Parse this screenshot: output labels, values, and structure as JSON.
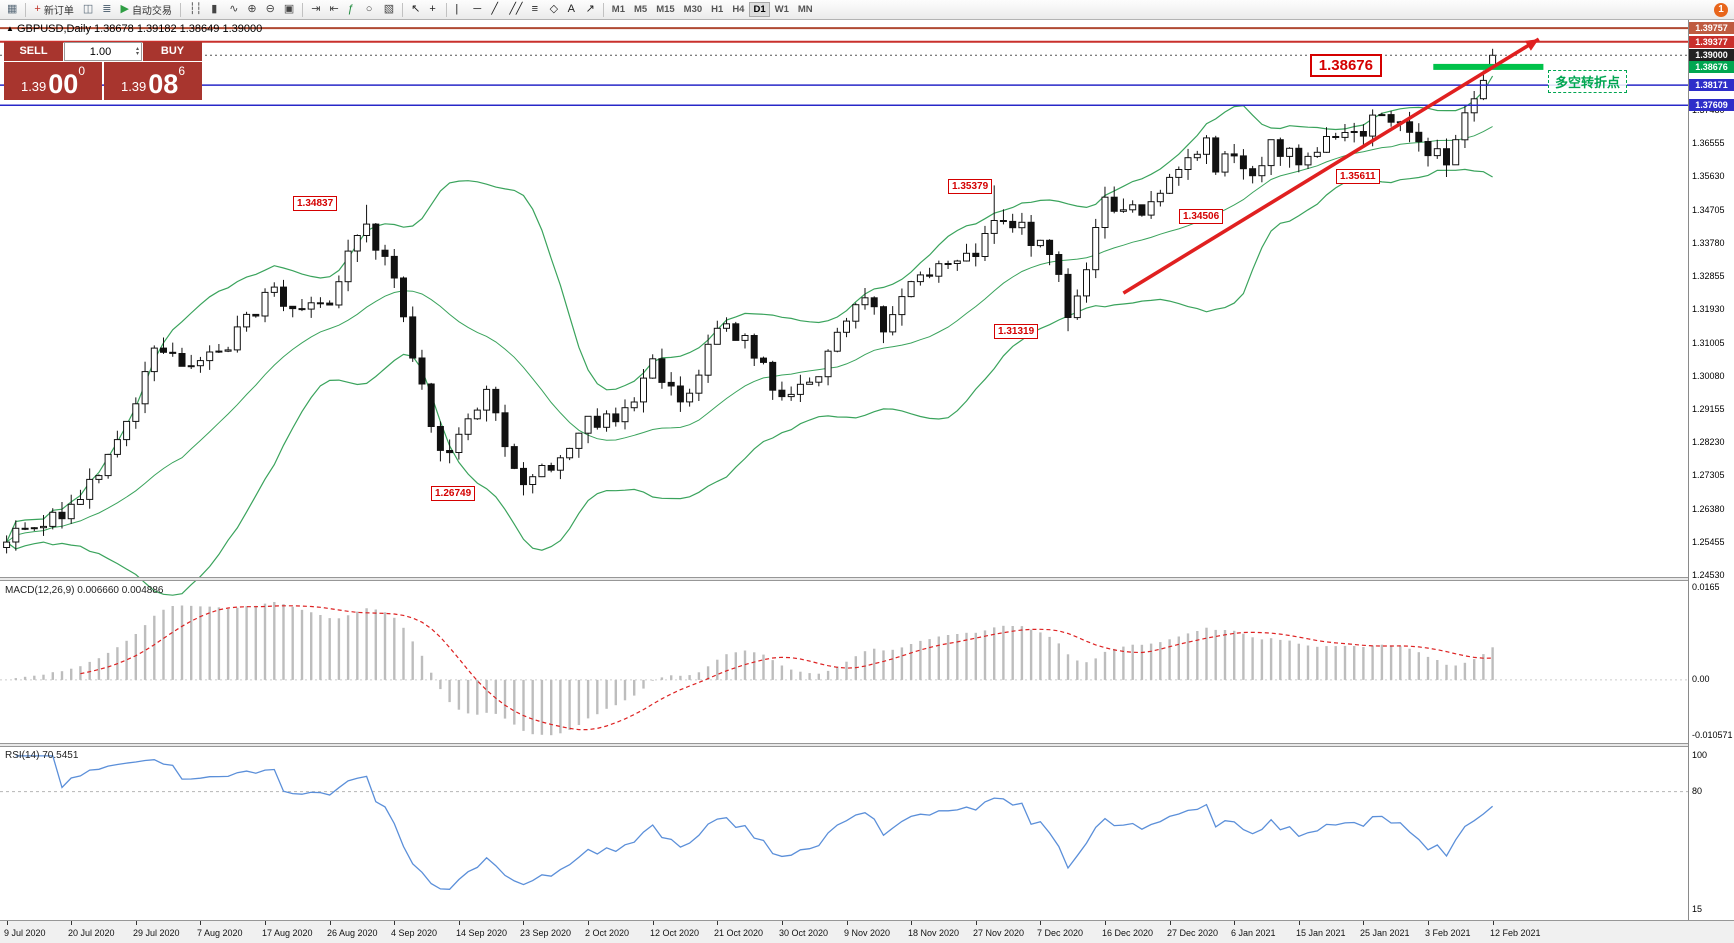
{
  "toolbar": {
    "badge": "1",
    "items": [
      {
        "type": "icon",
        "name": "new-window-icon",
        "glyph": "▦",
        "color": "#5a6b7a"
      },
      {
        "type": "sep"
      },
      {
        "type": "button",
        "name": "new-order-button",
        "glyph": "+",
        "color": "#c03328",
        "label": "新订单"
      },
      {
        "type": "icon",
        "name": "chart-window-icon",
        "glyph": "◫",
        "color": "#5a6b7a"
      },
      {
        "type": "icon",
        "name": "market-depth-icon",
        "glyph": "≣",
        "color": "#5a6b7a"
      },
      {
        "type": "button",
        "name": "auto-trading-button",
        "glyph": "▶",
        "color": "#2f9e44",
        "label": "自动交易"
      },
      {
        "type": "sep"
      },
      {
        "type": "icon",
        "name": "bars-chart-icon",
        "glyph": "┆┆",
        "color": "#444444"
      },
      {
        "type": "icon",
        "name": "candles-chart-icon",
        "glyph": "▮",
        "color": "#444444"
      },
      {
        "type": "icon",
        "name": "line-chart-icon",
        "glyph": "∿",
        "color": "#444444"
      },
      {
        "type": "icon",
        "name": "zoom-in-icon",
        "glyph": "⊕",
        "color": "#444444"
      },
      {
        "type": "icon",
        "name": "zoom-out-icon",
        "glyph": "⊖",
        "color": "#444444"
      },
      {
        "type": "icon",
        "name": "tile-windows-icon",
        "glyph": "▣",
        "color": "#444444"
      },
      {
        "type": "sep"
      },
      {
        "type": "icon",
        "name": "auto-scroll-icon",
        "glyph": "⇥",
        "color": "#444444"
      },
      {
        "type": "icon",
        "name": "chart-shift-icon",
        "glyph": "⇤",
        "color": "#444444"
      },
      {
        "type": "icon",
        "name": "indicators-icon",
        "glyph": "ƒ",
        "color": "#1d8a3c"
      },
      {
        "type": "icon",
        "name": "periods-icon",
        "glyph": "○",
        "color": "#444444"
      },
      {
        "type": "icon",
        "name": "templates-icon",
        "glyph": "▧",
        "color": "#444444"
      },
      {
        "type": "sep"
      },
      {
        "type": "icon",
        "name": "cursor-icon",
        "glyph": "↖",
        "color": "#222222"
      },
      {
        "type": "icon",
        "name": "crosshair-icon",
        "glyph": "+",
        "color": "#222222"
      },
      {
        "type": "sep"
      },
      {
        "type": "icon",
        "name": "vertical-line-icon",
        "glyph": "|",
        "color": "#222222"
      },
      {
        "type": "icon",
        "name": "horizontal-line-icon",
        "glyph": "─",
        "color": "#222222"
      },
      {
        "type": "icon",
        "name": "trendline-icon",
        "glyph": "╱",
        "color": "#222222"
      },
      {
        "type": "icon",
        "name": "channel-icon",
        "glyph": "╱╱",
        "color": "#222222"
      },
      {
        "type": "icon",
        "name": "fibonacci-icon",
        "glyph": "≡",
        "color": "#222222"
      },
      {
        "type": "icon",
        "name": "shapes-icon",
        "glyph": "◇",
        "color": "#222222"
      },
      {
        "type": "icon",
        "name": "text-icon",
        "glyph": "A",
        "color": "#222222"
      },
      {
        "type": "icon",
        "name": "arrows-icon",
        "glyph": "↗",
        "color": "#222222"
      },
      {
        "type": "sep"
      },
      {
        "type": "tf",
        "name": "timeframe-m1",
        "label": "M1"
      },
      {
        "type": "tf",
        "name": "timeframe-m5",
        "label": "M5"
      },
      {
        "type": "tf",
        "name": "timeframe-m15",
        "label": "M15"
      },
      {
        "type": "tf",
        "name": "timeframe-m30",
        "label": "M30"
      },
      {
        "type": "tf",
        "name": "timeframe-h1",
        "label": "H1"
      },
      {
        "type": "tf",
        "name": "timeframe-h4",
        "label": "H4"
      },
      {
        "type": "tf",
        "name": "timeframe-d1",
        "label": "D1",
        "active": true
      },
      {
        "type": "tf",
        "name": "timeframe-w1",
        "label": "W1"
      },
      {
        "type": "tf",
        "name": "timeframe-mn",
        "label": "MN"
      }
    ]
  },
  "chart": {
    "symbol_marker": "▲",
    "header": "GBPUSD,Daily  1.38678 1.39182 1.38649 1.39000"
  },
  "trade_panel": {
    "sell_label": "SELL",
    "buy_label": "BUY",
    "volume": "1.00",
    "sell_price": {
      "base": "1.39",
      "big": "00",
      "sup": "0"
    },
    "buy_price": {
      "base": "1.39",
      "big": "08",
      "sup": "6"
    }
  },
  "price_axis": {
    "max": 1.3976,
    "min": 1.24505,
    "ticks": [
      "1.37480",
      "1.36555",
      "1.35630",
      "1.34705",
      "1.33780",
      "1.32855",
      "1.31930",
      "1.31005",
      "1.30080",
      "1.29155",
      "1.28230",
      "1.27305",
      "1.26380",
      "1.25455",
      "1.24530"
    ],
    "tags": [
      {
        "text": "1.39757",
        "bg": "#bf5b40"
      },
      {
        "text": "1.39377",
        "bg": "#c9302c"
      },
      {
        "text": "1.39000",
        "bg": "#222222"
      },
      {
        "text": "1.38676",
        "bg": "#00a651"
      },
      {
        "text": "1.38171",
        "bg": "#2e2ec9"
      },
      {
        "text": "1.37609",
        "bg": "#2e2ec9"
      }
    ]
  },
  "time_axis": {
    "labels": [
      "9 Jul 2020",
      "20 Jul 2020",
      "29 Jul 2020",
      "7 Aug 2020",
      "17 Aug 2020",
      "26 Aug 2020",
      "4 Sep 2020",
      "14 Sep 2020",
      "23 Sep 2020",
      "2 Oct 2020",
      "12 Oct 2020",
      "21 Oct 2020",
      "30 Oct 2020",
      "9 Nov 2020",
      "18 Nov 2020",
      "27 Nov 2020",
      "7 Dec 2020",
      "16 Dec 2020",
      "27 Dec 2020",
      "6 Jan 2021",
      "15 Jan 2021",
      "25 Jan 2021",
      "3 Feb 2021",
      "12 Feb 2021"
    ]
  },
  "candles": {
    "count": 162,
    "anchors": [
      [
        0,
        1.2545
      ],
      [
        3,
        1.2585
      ],
      [
        7,
        1.265
      ],
      [
        10,
        1.273
      ],
      [
        14,
        1.293
      ],
      [
        16,
        1.3085
      ],
      [
        18,
        1.307
      ],
      [
        21,
        1.305
      ],
      [
        24,
        1.308
      ],
      [
        28,
        1.324
      ],
      [
        31,
        1.3195
      ],
      [
        35,
        1.3205
      ],
      [
        37,
        1.3355
      ],
      [
        39,
        1.343
      ],
      [
        42,
        1.328
      ],
      [
        45,
        1.2985
      ],
      [
        47,
        1.28
      ],
      [
        49,
        1.2845
      ],
      [
        52,
        1.297
      ],
      [
        55,
        1.275
      ],
      [
        56,
        1.2705
      ],
      [
        59,
        1.2745
      ],
      [
        63,
        1.2895
      ],
      [
        66,
        1.288
      ],
      [
        68,
        1.2935
      ],
      [
        70,
        1.3055
      ],
      [
        73,
        1.2935
      ],
      [
        77,
        1.314
      ],
      [
        80,
        1.312
      ],
      [
        82,
        1.3045
      ],
      [
        84,
        1.295
      ],
      [
        87,
        1.299
      ],
      [
        91,
        1.316
      ],
      [
        93,
        1.3225
      ],
      [
        95,
        1.313
      ],
      [
        98,
        1.327
      ],
      [
        101,
        1.332
      ],
      [
        105,
        1.334
      ],
      [
        107,
        1.344
      ],
      [
        109,
        1.342
      ],
      [
        112,
        1.3385
      ],
      [
        114,
        1.329
      ],
      [
        115,
        1.317
      ],
      [
        116,
        1.323
      ],
      [
        119,
        1.3505
      ],
      [
        121,
        1.347
      ],
      [
        123,
        1.3455
      ],
      [
        126,
        1.356
      ],
      [
        128,
        1.3615
      ],
      [
        130,
        1.367
      ],
      [
        131,
        1.3575
      ],
      [
        133,
        1.362
      ],
      [
        135,
        1.3565
      ],
      [
        137,
        1.3665
      ],
      [
        140,
        1.3595
      ],
      [
        142,
        1.363
      ],
      [
        145,
        1.3685
      ],
      [
        147,
        1.3675
      ],
      [
        149,
        1.3735
      ],
      [
        151,
        1.3715
      ],
      [
        153,
        1.366
      ],
      [
        155,
        1.364
      ],
      [
        156,
        1.3595
      ],
      [
        158,
        1.374
      ],
      [
        160,
        1.383
      ],
      [
        161,
        1.39
      ]
    ],
    "key_bars": {
      "39": {
        "high": 1.34837
      },
      "56": {
        "low": 1.26749
      },
      "107": {
        "high": 1.35379
      },
      "115": {
        "low": 1.31319
      },
      "123": {
        "low": 1.34506
      },
      "156": {
        "low": 1.35611
      },
      "161": {
        "open": 1.38678,
        "high": 1.39182,
        "low": 1.38649,
        "close": 1.39
      }
    }
  },
  "indicators": {
    "bollinger": {
      "period": 20,
      "deviation": 2,
      "color": "#3aa35c"
    },
    "macd": {
      "label": "MACD(12,26,9) 0.006660 0.004886",
      "axis_max": "0.0165",
      "axis_zero": "0.00",
      "axis_min": "-0.010571",
      "max": 0.0165,
      "min": -0.010571,
      "hist_color": "#bdbdbd",
      "signal_color": "#dd2222"
    },
    "rsi": {
      "label": "RSI(14) 70.5451",
      "axis_top": "100",
      "axis_level": "80",
      "axis_bottom": "15",
      "level": 80,
      "scale_min": 15,
      "scale_max": 100,
      "line_color": "#5b8fd9"
    }
  },
  "objects": {
    "hlines": [
      {
        "price": 1.39757,
        "color": "#b04a32",
        "w": 2
      },
      {
        "price": 1.39377,
        "color": "#c9302c",
        "w": 2
      },
      {
        "price": 1.39,
        "color": "#555555",
        "w": 1,
        "dash": "2,3"
      },
      {
        "price": 1.38171,
        "color": "#2828c8",
        "w": 1.5
      },
      {
        "price": 1.37609,
        "color": "#2828c8",
        "w": 1.5
      }
    ],
    "green_zone": {
      "price": 1.38676,
      "from_bar": 155,
      "to_bar": 166.5,
      "color": "#00c24a"
    },
    "trend_arrow": {
      "from_bar": 121,
      "from_price": 1.3238,
      "to_bar": 166,
      "to_price": 1.3945,
      "color": "#e02020"
    },
    "price_labels": [
      {
        "text": "1.34837",
        "bar": 31,
        "price": 1.3487
      },
      {
        "text": "1.26749",
        "bar": 46,
        "price": 1.2678
      },
      {
        "text": "1.35379",
        "bar": 102,
        "price": 1.3533
      },
      {
        "text": "1.31319",
        "bar": 107,
        "price": 1.3131
      },
      {
        "text": "1.34506",
        "bar": 127,
        "price": 1.3449
      },
      {
        "text": "1.35611",
        "bar": 144,
        "price": 1.356
      }
    ],
    "resistance_label": "1.38676",
    "turning_point_label": "多空转折点"
  }
}
